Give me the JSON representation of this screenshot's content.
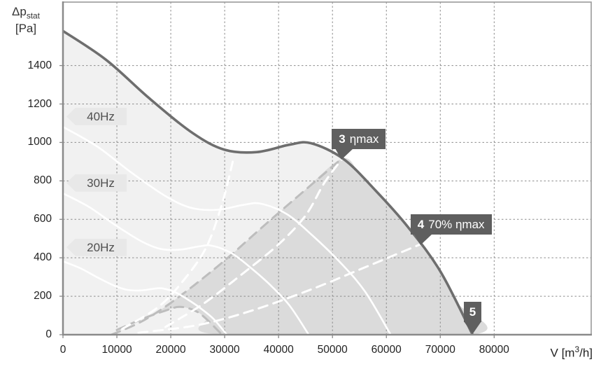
{
  "axes": {
    "y_title": {
      "symbol": "Δp",
      "subscript": "stat",
      "unit": "[Pa]"
    },
    "x_title": {
      "symbol": "V ",
      "unit_prefix": "[m",
      "superscript": "3",
      "unit_suffix": "/h]"
    },
    "y_ticks": [
      0,
      200,
      400,
      600,
      800,
      1000,
      1200,
      1400
    ],
    "x_ticks": [
      0,
      10000,
      20000,
      30000,
      40000,
      50000,
      60000,
      70000,
      80000
    ]
  },
  "frequency_labels": [
    {
      "label": "40Hz",
      "pa": 1135
    },
    {
      "label": "30Hz",
      "pa": 790
    },
    {
      "label": "20Hz",
      "pa": 455
    }
  ],
  "markers": [
    {
      "number": "3",
      "label": "ηmax",
      "v": 51700,
      "pa": 915,
      "style": "tag"
    },
    {
      "number": "4",
      "label": "70% ηmax",
      "v": 66300,
      "pa": 470,
      "style": "tag"
    },
    {
      "number": "5",
      "label": "",
      "v": 76000,
      "pa": 0,
      "style": "pin"
    }
  ],
  "colors": {
    "background": "#ffffff",
    "plot_border": "#9a9a9a",
    "axis_line": "#8a8a8a",
    "gridline": "#8c8c8c",
    "fill_under_curve": "#f1f1f1",
    "fill_operating_zone": "#dbdbdb",
    "max_curve": "#6e6e6e",
    "frequency_curve": "#ffffff",
    "efficiency_dashed": "#ffffff",
    "zone_boundary_dashed": "#bdbdbd",
    "badge_bg": "#e8e8e8",
    "badge_text": "#4f4f4f",
    "marker_bg": "#5f5f5f",
    "marker_text": "#ffffff",
    "tick_text": "#222222"
  },
  "chart_data": {
    "type": "line",
    "title": "Fan performance curve with efficiency markers",
    "xlabel": "V [m3/h]",
    "ylabel": "Δp stat [Pa]",
    "xlim": [
      0,
      98000
    ],
    "ylim": [
      0,
      1730
    ],
    "x_tick_step": 10000,
    "y_tick_step": 200,
    "grid": true,
    "legend_position": "none",
    "series": [
      {
        "name": "max-speed-curve-50hz",
        "style": "solid-dark",
        "points": [
          [
            0,
            1580
          ],
          [
            8000,
            1430
          ],
          [
            16000,
            1230
          ],
          [
            24000,
            1050
          ],
          [
            30000,
            962
          ],
          [
            36000,
            950
          ],
          [
            42000,
            988
          ],
          [
            46000,
            996
          ],
          [
            52000,
            915
          ],
          [
            58000,
            750
          ],
          [
            64000,
            560
          ],
          [
            70000,
            330
          ],
          [
            76000,
            0
          ]
        ]
      },
      {
        "name": "curve-40hz",
        "style": "solid-white",
        "points": [
          [
            0,
            1081
          ],
          [
            6400,
            978
          ],
          [
            12800,
            841
          ],
          [
            19200,
            718
          ],
          [
            24000,
            658
          ],
          [
            28800,
            650
          ],
          [
            33600,
            676
          ],
          [
            36800,
            681
          ],
          [
            41600,
            626
          ],
          [
            46400,
            513
          ],
          [
            51200,
            383
          ],
          [
            56000,
            226
          ],
          [
            60800,
            0
          ]
        ]
      },
      {
        "name": "curve-30hz",
        "style": "solid-white",
        "points": [
          [
            0,
            735
          ],
          [
            4800,
            665
          ],
          [
            9600,
            572
          ],
          [
            14400,
            488
          ],
          [
            18000,
            447
          ],
          [
            21600,
            442
          ],
          [
            25200,
            459
          ],
          [
            27600,
            463
          ],
          [
            31200,
            425
          ],
          [
            34800,
            349
          ],
          [
            38400,
            260
          ],
          [
            42000,
            153
          ],
          [
            45600,
            0
          ]
        ]
      },
      {
        "name": "curve-20hz",
        "style": "solid-white",
        "points": [
          [
            0,
            382
          ],
          [
            3200,
            346
          ],
          [
            6400,
            298
          ],
          [
            9600,
            254
          ],
          [
            12000,
            233
          ],
          [
            14400,
            230
          ],
          [
            16800,
            239
          ],
          [
            18400,
            241
          ],
          [
            20800,
            221
          ],
          [
            23200,
            182
          ],
          [
            25600,
            136
          ],
          [
            28000,
            80
          ],
          [
            30400,
            0
          ]
        ]
      },
      {
        "name": "efficiency-line-left",
        "style": "dashed-white",
        "points": [
          [
            11000,
            30
          ],
          [
            17500,
            140
          ],
          [
            22000,
            270
          ],
          [
            26500,
            450
          ],
          [
            29500,
            680
          ],
          [
            31500,
            900
          ]
        ]
      },
      {
        "name": "efficiency-line-etamax",
        "style": "dashed-white",
        "points": [
          [
            19000,
            40
          ],
          [
            26000,
            160
          ],
          [
            33000,
            310
          ],
          [
            40000,
            470
          ],
          [
            45000,
            620
          ],
          [
            48500,
            790
          ],
          [
            51700,
            912
          ]
        ]
      },
      {
        "name": "efficiency-line-70pct",
        "style": "dashed-white",
        "points": [
          [
            14000,
            10
          ],
          [
            25000,
            50
          ],
          [
            35000,
            125
          ],
          [
            46000,
            235
          ],
          [
            56000,
            350
          ],
          [
            62000,
            420
          ],
          [
            66300,
            470
          ]
        ]
      },
      {
        "name": "zone-boundary-upper",
        "style": "dashed-gray",
        "points": [
          [
            9000,
            0
          ],
          [
            14000,
            60
          ],
          [
            18600,
            138
          ],
          [
            24000,
            250
          ],
          [
            30300,
            393
          ],
          [
            37000,
            560
          ],
          [
            44000,
            730
          ],
          [
            51700,
            915
          ]
        ]
      },
      {
        "name": "zone-boundary-lower",
        "style": "dashed-gray",
        "points": [
          [
            10000,
            25
          ],
          [
            15000,
            85
          ],
          [
            19000,
            125
          ],
          [
            21700,
            145
          ],
          [
            24500,
            125
          ],
          [
            26500,
            84
          ],
          [
            29500,
            0
          ]
        ]
      }
    ],
    "areas": [
      {
        "name": "area-under-max-curve",
        "fill": "#f1f1f1",
        "close": "to-origin",
        "points": [
          [
            0,
            1580
          ],
          [
            8000,
            1430
          ],
          [
            16000,
            1230
          ],
          [
            24000,
            1050
          ],
          [
            30000,
            962
          ],
          [
            36000,
            950
          ],
          [
            42000,
            988
          ],
          [
            46000,
            996
          ],
          [
            52000,
            915
          ],
          [
            58000,
            750
          ],
          [
            64000,
            560
          ],
          [
            70000,
            330
          ],
          [
            76000,
            0
          ]
        ]
      },
      {
        "name": "recommended-operating-zone",
        "fill": "#dbdbdb",
        "close": "loop",
        "points": [
          [
            17000,
            105
          ],
          [
            18600,
            138
          ],
          [
            24000,
            250
          ],
          [
            30300,
            393
          ],
          [
            37000,
            560
          ],
          [
            44000,
            730
          ],
          [
            51700,
            915
          ],
          [
            55000,
            840
          ],
          [
            58000,
            750
          ],
          [
            61000,
            660
          ],
          [
            64000,
            560
          ],
          [
            67000,
            450
          ],
          [
            70000,
            330
          ],
          [
            73000,
            170
          ],
          [
            76000,
            0
          ],
          [
            29500,
            0
          ],
          [
            26500,
            84
          ],
          [
            24500,
            125
          ],
          [
            21700,
            145
          ],
          [
            19000,
            125
          ]
        ]
      }
    ]
  }
}
